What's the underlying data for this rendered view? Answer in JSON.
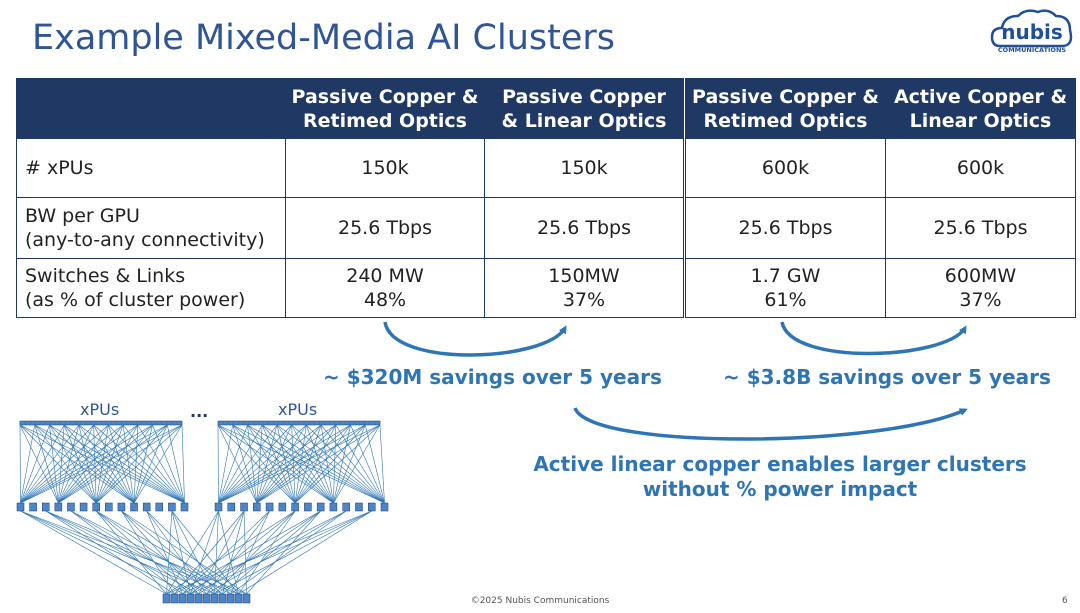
{
  "title": "Example Mixed-Media AI Clusters",
  "logo": {
    "name": "nubis",
    "sub": "COMMUNICATIONS"
  },
  "table_left": {
    "headers": [
      [
        "Passive Copper &",
        "Retimed Optics"
      ],
      [
        "Passive Copper",
        "& Linear Optics"
      ]
    ],
    "rows": [
      {
        "label": [
          "# xPUs"
        ],
        "values": [
          [
            "150k"
          ],
          [
            "150k"
          ]
        ]
      },
      {
        "label": [
          "BW per GPU",
          "(any-to-any connectivity)"
        ],
        "values": [
          [
            "25.6 Tbps"
          ],
          [
            "25.6 Tbps"
          ]
        ]
      },
      {
        "label": [
          "Switches & Links",
          "(as % of cluster power)"
        ],
        "values": [
          [
            "240 MW",
            "48%"
          ],
          [
            "150MW",
            "37%"
          ]
        ]
      }
    ]
  },
  "table_right": {
    "headers": [
      [
        "Passive Copper &",
        "Retimed Optics"
      ],
      [
        "Active Copper &",
        "Linear Optics"
      ]
    ],
    "rows": [
      {
        "values": [
          [
            "600k"
          ],
          [
            "600k"
          ]
        ]
      },
      {
        "values": [
          [
            "25.6 Tbps"
          ],
          [
            "25.6 Tbps"
          ]
        ]
      },
      {
        "values": [
          [
            "1.7 GW",
            "61%"
          ],
          [
            "600MW",
            "37%"
          ]
        ]
      }
    ]
  },
  "savings_left": "~ $320M savings over 5 years",
  "savings_right": "~ $3.8B savings over 5 years",
  "message": [
    "Active linear copper enables larger clusters",
    "without % power impact"
  ],
  "diagram": {
    "label_left": "xPUs",
    "label_right": "xPUs",
    "ellipsis": "..."
  },
  "footer": "©2025 Nubis Communications",
  "page_number": "6",
  "colors": {
    "title": "#2f5597",
    "header_bg": "#1f3864",
    "accent": "#2e75b6"
  }
}
